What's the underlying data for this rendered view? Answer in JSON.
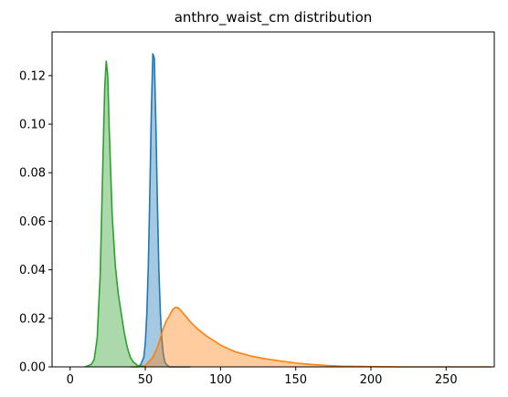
{
  "chart_data": {
    "type": "area",
    "title": "anthro_waist_cm distribution",
    "xlabel": "",
    "ylabel": "",
    "xlim": [
      -12,
      282
    ],
    "ylim": [
      0,
      0.138
    ],
    "grid": false,
    "legend": "none",
    "xticks": [
      "0",
      "50",
      "100",
      "150",
      "200",
      "250"
    ],
    "yticks": [
      "0.00",
      "0.02",
      "0.04",
      "0.06",
      "0.08",
      "0.10",
      "0.12"
    ],
    "series": [
      {
        "color": "#1f77b4",
        "x": [
          45,
          47,
          49,
          50,
          51,
          52,
          53,
          54,
          55,
          56,
          57,
          58,
          59,
          60,
          61,
          62,
          63,
          64,
          66,
          70,
          80
        ],
        "y": [
          0,
          0.001,
          0.004,
          0.01,
          0.022,
          0.042,
          0.072,
          0.105,
          0.129,
          0.127,
          0.1,
          0.068,
          0.04,
          0.022,
          0.011,
          0.005,
          0.002,
          0.001,
          0,
          0,
          0
        ]
      },
      {
        "color": "#ff7f0e",
        "x": [
          40,
          45,
          50,
          55,
          58,
          60,
          62,
          64,
          66,
          68,
          70,
          72,
          74,
          76,
          78,
          80,
          85,
          90,
          95,
          100,
          105,
          110,
          120,
          130,
          140,
          150,
          160,
          170,
          180,
          200,
          220,
          250,
          280
        ],
        "y": [
          0,
          0,
          0.0005,
          0.004,
          0.008,
          0.012,
          0.016,
          0.019,
          0.021,
          0.0235,
          0.0245,
          0.0243,
          0.023,
          0.0215,
          0.02,
          0.0185,
          0.0155,
          0.013,
          0.011,
          0.009,
          0.0075,
          0.0062,
          0.0045,
          0.0033,
          0.0024,
          0.0016,
          0.001,
          0.0006,
          0.0003,
          0.0001,
          0,
          0,
          0
        ]
      },
      {
        "color": "#2ca02c",
        "x": [
          10,
          14,
          16,
          18,
          20,
          22,
          23,
          24,
          25,
          26,
          27,
          28,
          30,
          32,
          34,
          36,
          38,
          40,
          42,
          45,
          50
        ],
        "y": [
          0,
          0.001,
          0.003,
          0.012,
          0.038,
          0.09,
          0.115,
          0.126,
          0.12,
          0.098,
          0.08,
          0.062,
          0.042,
          0.03,
          0.022,
          0.014,
          0.008,
          0.004,
          0.002,
          0.0005,
          0
        ]
      }
    ]
  }
}
